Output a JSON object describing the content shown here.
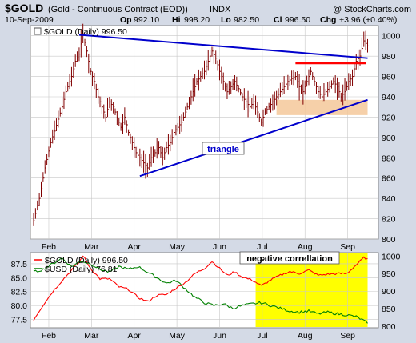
{
  "header": {
    "symbol": "$GOLD",
    "description": "(Gold - Continuous Contract (EOD))",
    "exchange": "INDX",
    "copyright": "@ StockCharts.com",
    "date": "10-Sep-2009",
    "open_label": "Op",
    "open": "992.10",
    "high_label": "Hi",
    "high": "998.20",
    "low_label": "Lo",
    "low": "982.50",
    "close_label": "Cl",
    "close": "996.50",
    "change_label": "Chg",
    "change": "+3.96 (+0.40%)"
  },
  "main_legend": "$GOLD (Daily) 996.50",
  "lower_legend": [
    {
      "label": "$GOLD (Daily) 996.50",
      "color": "#ff0000"
    },
    {
      "label": "$USD (Daily) 76.81",
      "color": "#008000"
    }
  ],
  "annotations": {
    "triangle": "triangle",
    "negative": "negative correllation"
  },
  "colors": {
    "panel_bg": "#ffffff",
    "outer_bg": "#d4dae6",
    "grid": "#c8c8c8",
    "bars": "#800000",
    "trendline": "#0000cc",
    "resistance": "#ff0000",
    "support_zone": "#f5c89a",
    "highlight": "#ffff00",
    "gold_line": "#ff0000",
    "usd_line": "#008000"
  },
  "chart_data": [
    {
      "type": "ohlc",
      "title": "$GOLD (Daily) 996.50",
      "ylim": [
        800,
        1010
      ],
      "yticks": [
        800,
        820,
        840,
        860,
        880,
        900,
        920,
        940,
        960,
        980,
        1000
      ],
      "months": [
        "Feb",
        "Mar",
        "Apr",
        "May",
        "Jun",
        "Jul",
        "Aug",
        "Sep"
      ],
      "series": [
        {
          "name": "$GOLD",
          "points": [
            [
              0,
              818
            ],
            [
              3,
              840
            ],
            [
              6,
              870
            ],
            [
              9,
              895
            ],
            [
              12,
              912
            ],
            [
              15,
              930
            ],
            [
              17,
              945
            ],
            [
              20,
              960
            ],
            [
              22,
              975
            ],
            [
              24,
              982
            ],
            [
              25,
              992
            ],
            [
              26,
              1002
            ],
            [
              28,
              985
            ],
            [
              30,
              965
            ],
            [
              32,
              955
            ],
            [
              34,
              940
            ],
            [
              36,
              930
            ],
            [
              38,
              920
            ],
            [
              40,
              935
            ],
            [
              42,
              930
            ],
            [
              44,
              920
            ],
            [
              46,
              910
            ],
            [
              48,
              920
            ],
            [
              50,
              905
            ],
            [
              52,
              895
            ],
            [
              54,
              885
            ],
            [
              56,
              880
            ],
            [
              58,
              875
            ],
            [
              60,
              870
            ],
            [
              62,
              880
            ],
            [
              64,
              885
            ],
            [
              66,
              890
            ],
            [
              68,
              880
            ],
            [
              70,
              890
            ],
            [
              72,
              895
            ],
            [
              74,
              905
            ],
            [
              76,
              910
            ],
            [
              78,
              915
            ],
            [
              80,
              925
            ],
            [
              82,
              935
            ],
            [
              84,
              945
            ],
            [
              86,
              955
            ],
            [
              88,
              960
            ],
            [
              90,
              965
            ],
            [
              92,
              975
            ],
            [
              94,
              985
            ],
            [
              96,
              978
            ],
            [
              98,
              965
            ],
            [
              100,
              955
            ],
            [
              102,
              945
            ],
            [
              104,
              950
            ],
            [
              106,
              955
            ],
            [
              108,
              948
            ],
            [
              110,
              940
            ],
            [
              112,
              935
            ],
            [
              114,
              930
            ],
            [
              116,
              935
            ],
            [
              118,
              925
            ],
            [
              120,
              915
            ],
            [
              122,
              925
            ],
            [
              124,
              930
            ],
            [
              126,
              935
            ],
            [
              128,
              940
            ],
            [
              130,
              945
            ],
            [
              132,
              950
            ],
            [
              134,
              955
            ],
            [
              136,
              958
            ],
            [
              138,
              960
            ],
            [
              140,
              950
            ],
            [
              142,
              945
            ],
            [
              144,
              955
            ],
            [
              146,
              965
            ],
            [
              148,
              955
            ],
            [
              150,
              945
            ],
            [
              152,
              940
            ],
            [
              154,
              945
            ],
            [
              156,
              950
            ],
            [
              158,
              955
            ],
            [
              160,
              950
            ],
            [
              162,
              940
            ],
            [
              164,
              945
            ],
            [
              166,
              955
            ],
            [
              168,
              960
            ],
            [
              170,
              975
            ],
            [
              172,
              980
            ],
            [
              174,
              995
            ],
            [
              176,
              990
            ]
          ]
        }
      ],
      "trendlines": [
        {
          "name": "upper-trendline",
          "from": [
            24,
            1001
          ],
          "to": [
            176,
            978
          ]
        },
        {
          "name": "lower-trendline",
          "from": [
            56,
            862
          ],
          "to": [
            176,
            937
          ]
        }
      ],
      "resistance": {
        "from": [
          138,
          973
        ],
        "to": [
          175,
          973
        ]
      },
      "support_zone": {
        "x": [
          128,
          176
        ],
        "y": [
          922,
          937
        ]
      }
    },
    {
      "type": "line",
      "ylim_left": [
        76,
        89.5
      ],
      "yticks_left": [
        77.5,
        80.0,
        82.5,
        85.0,
        87.5
      ],
      "ylim_right": [
        795,
        1010
      ],
      "yticks_right": [
        800,
        850,
        900,
        950,
        1000
      ],
      "series": [
        {
          "name": "$GOLD",
          "axis": "right",
          "points": [
            [
              0,
              818
            ],
            [
              5,
              860
            ],
            [
              10,
              898
            ],
            [
              15,
              930
            ],
            [
              20,
              960
            ],
            [
              24,
              982
            ],
            [
              26,
              1002
            ],
            [
              30,
              965
            ],
            [
              35,
              935
            ],
            [
              40,
              935
            ],
            [
              45,
              912
            ],
            [
              50,
              905
            ],
            [
              55,
              882
            ],
            [
              60,
              870
            ],
            [
              65,
              888
            ],
            [
              70,
              890
            ],
            [
              75,
              908
            ],
            [
              80,
              925
            ],
            [
              85,
              950
            ],
            [
              90,
              965
            ],
            [
              94,
              985
            ],
            [
              98,
              965
            ],
            [
              102,
              945
            ],
            [
              106,
              955
            ],
            [
              110,
              940
            ],
            [
              115,
              932
            ],
            [
              120,
              915
            ],
            [
              125,
              932
            ],
            [
              130,
              945
            ],
            [
              135,
              956
            ],
            [
              140,
              950
            ],
            [
              145,
              960
            ],
            [
              150,
              945
            ],
            [
              155,
              948
            ],
            [
              160,
              950
            ],
            [
              165,
              950
            ],
            [
              170,
              975
            ],
            [
              174,
              995
            ],
            [
              176,
              993
            ]
          ]
        },
        {
          "name": "$USD",
          "axis": "left",
          "points": [
            [
              0,
              86.0
            ],
            [
              5,
              86.5
            ],
            [
              10,
              87.5
            ],
            [
              15,
              88.5
            ],
            [
              20,
              87.0
            ],
            [
              25,
              88.0
            ],
            [
              30,
              87.5
            ],
            [
              35,
              86.5
            ],
            [
              40,
              86.0
            ],
            [
              45,
              87.0
            ],
            [
              50,
              86.5
            ],
            [
              55,
              87.0
            ],
            [
              60,
              86.0
            ],
            [
              65,
              85.0
            ],
            [
              70,
              84.0
            ],
            [
              75,
              84.5
            ],
            [
              80,
              83.0
            ],
            [
              85,
              81.5
            ],
            [
              90,
              80.5
            ],
            [
              95,
              80.0
            ],
            [
              100,
              80.3
            ],
            [
              105,
              79.5
            ],
            [
              110,
              80.0
            ],
            [
              115,
              80.3
            ],
            [
              120,
              80.5
            ],
            [
              125,
              80.0
            ],
            [
              130,
              79.5
            ],
            [
              135,
              79.0
            ],
            [
              140,
              78.8
            ],
            [
              145,
              79.0
            ],
            [
              150,
              78.5
            ],
            [
              155,
              78.8
            ],
            [
              160,
              78.5
            ],
            [
              165,
              78.3
            ],
            [
              170,
              78.0
            ],
            [
              174,
              77.3
            ],
            [
              176,
              76.8
            ]
          ]
        }
      ],
      "highlight_zone": {
        "x": [
          117,
          176
        ]
      }
    }
  ]
}
